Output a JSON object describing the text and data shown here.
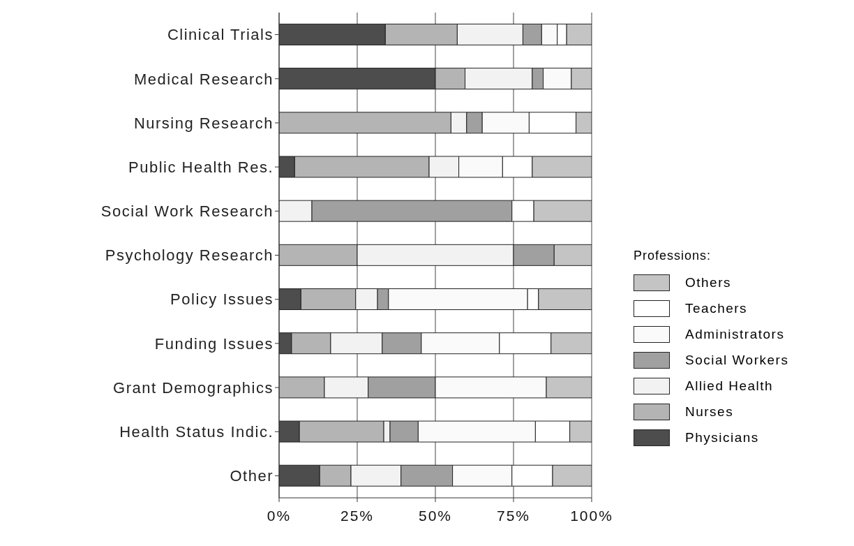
{
  "chart_data": {
    "type": "bar",
    "orientation": "horizontal",
    "stacked": true,
    "categories": [
      "Clinical Trials",
      "Medical Research",
      "Nursing Research",
      "Public Health Res.",
      "Social Work Research",
      "Psychology Research",
      "Policy Issues",
      "Funding Issues",
      "Grant Demographics",
      "Health Status Indic.",
      "Other"
    ],
    "series": [
      {
        "name": "Physicians",
        "color": "#4d4d4d",
        "values": [
          34,
          50,
          0,
          5,
          0,
          0,
          7,
          4,
          0,
          6.5,
          13
        ]
      },
      {
        "name": "Nurses",
        "color": "#b4b4b4",
        "values": [
          23,
          9.5,
          55,
          43,
          0,
          25,
          17.5,
          12.5,
          14.5,
          27,
          10
        ]
      },
      {
        "name": "Allied Health",
        "color": "#f2f2f2",
        "values": [
          21,
          21.5,
          5,
          9.5,
          10.5,
          50,
          7,
          16.5,
          14,
          2,
          16
        ]
      },
      {
        "name": "Social Workers",
        "color": "#a0a0a0",
        "values": [
          6,
          3.5,
          5,
          0,
          64,
          13,
          3.5,
          12.5,
          21.5,
          9,
          16.5
        ]
      },
      {
        "name": "Administrators",
        "color": "#fafafa",
        "values": [
          5,
          9,
          15,
          14,
          0,
          0,
          44.5,
          25,
          35.5,
          37.5,
          19
        ]
      },
      {
        "name": "Teachers",
        "color": "#ffffff",
        "values": [
          3,
          0,
          15,
          9.5,
          7,
          0,
          3.5,
          16.5,
          0,
          11,
          13
        ]
      },
      {
        "name": "Others",
        "color": "#c4c4c4",
        "values": [
          8,
          6.5,
          5,
          19,
          18.5,
          12,
          17,
          13,
          14.5,
          7,
          12.5
        ]
      }
    ],
    "xlim": [
      0,
      100
    ],
    "xticks": [
      {
        "value": 0,
        "label": "0%"
      },
      {
        "value": 25,
        "label": "25%"
      },
      {
        "value": 50,
        "label": "50%"
      },
      {
        "value": 75,
        "label": "75%"
      },
      {
        "value": 100,
        "label": "100%"
      }
    ],
    "grid": "x",
    "legend": "right",
    "legend_title": "Professions:"
  }
}
